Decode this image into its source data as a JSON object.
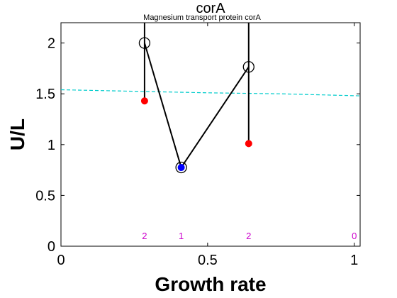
{
  "chart_data": {
    "type": "line",
    "title": "corA",
    "subtitle": "Magnesium transport protein corA",
    "xlabel": "Growth rate",
    "ylabel": "U/L",
    "xlim": [
      0,
      1.02
    ],
    "ylim": [
      0,
      2.2
    ],
    "xticks": [
      0,
      0.5,
      1
    ],
    "xtick_labels": [
      "0",
      "0.5",
      "1"
    ],
    "yticks": [
      0,
      0.5,
      1,
      1.5,
      2
    ],
    "ytick_labels": [
      "0",
      "0.5",
      "1",
      "1.5",
      "2"
    ],
    "grid": false,
    "legend": "none",
    "series": [
      {
        "kind": "line-with-open-circles",
        "color": "#000000",
        "x": [
          0.285,
          0.41,
          0.64
        ],
        "y": [
          2.0,
          0.775,
          1.765
        ]
      },
      {
        "kind": "points-red",
        "color": "#ff0000",
        "x": [
          0.285,
          0.64
        ],
        "y": [
          1.43,
          1.01
        ]
      },
      {
        "kind": "points-blue",
        "color": "#0000ff",
        "x": [
          0.41
        ],
        "y": [
          0.775
        ]
      },
      {
        "kind": "dashed-reference",
        "color": "#00cccc",
        "x": [
          0,
          0.25,
          0.5,
          0.75,
          1.02
        ],
        "y": [
          1.54,
          1.525,
          1.51,
          1.5,
          1.48
        ]
      }
    ],
    "vertical_lines": [
      {
        "x": 0.285,
        "y_from": 1.43,
        "y_to": 2.2
      },
      {
        "x": 0.64,
        "y_from": 1.01,
        "y_to": 2.2
      }
    ],
    "count_labels": [
      {
        "x": 0.285,
        "text": "2"
      },
      {
        "x": 0.41,
        "text": "1"
      },
      {
        "x": 0.64,
        "text": "2"
      },
      {
        "x": 1.0,
        "text": "0"
      }
    ],
    "count_label_color": "#cc00cc"
  }
}
